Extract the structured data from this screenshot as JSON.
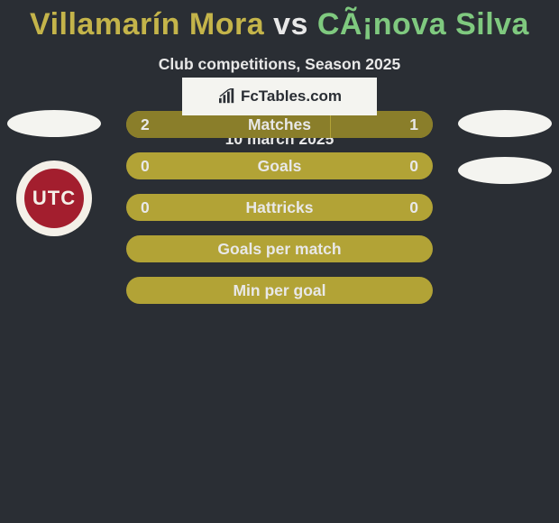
{
  "title": {
    "player1": "Villamarín Mora",
    "vs": "vs",
    "player2": "CÃ¡nova Silva",
    "player1_color": "#c4b44a",
    "player2_color": "#7fc97f"
  },
  "subtitle": "Club competitions, Season 2025",
  "date": "10 march 2025",
  "stats": {
    "bar_bg": "#b2a336",
    "bar_fill": "#8a7e2a",
    "rows": [
      {
        "label": "Matches",
        "left_val": "2",
        "right_val": "1",
        "left_pct": 66.6,
        "right_pct": 33.3
      },
      {
        "label": "Goals",
        "left_val": "0",
        "right_val": "0",
        "left_pct": 0,
        "right_pct": 0
      },
      {
        "label": "Hattricks",
        "left_val": "0",
        "right_val": "0",
        "left_pct": 0,
        "right_pct": 0
      },
      {
        "label": "Goals per match",
        "left_val": "",
        "right_val": "",
        "left_pct": 0,
        "right_pct": 0
      },
      {
        "label": "Min per goal",
        "left_val": "",
        "right_val": "",
        "left_pct": 0,
        "right_pct": 0
      }
    ]
  },
  "club_left": {
    "text": "UTC",
    "ring_color": "#a31e2e",
    "bg_color": "#f4f0e8"
  },
  "watermark": {
    "text": "FcTables.com"
  }
}
